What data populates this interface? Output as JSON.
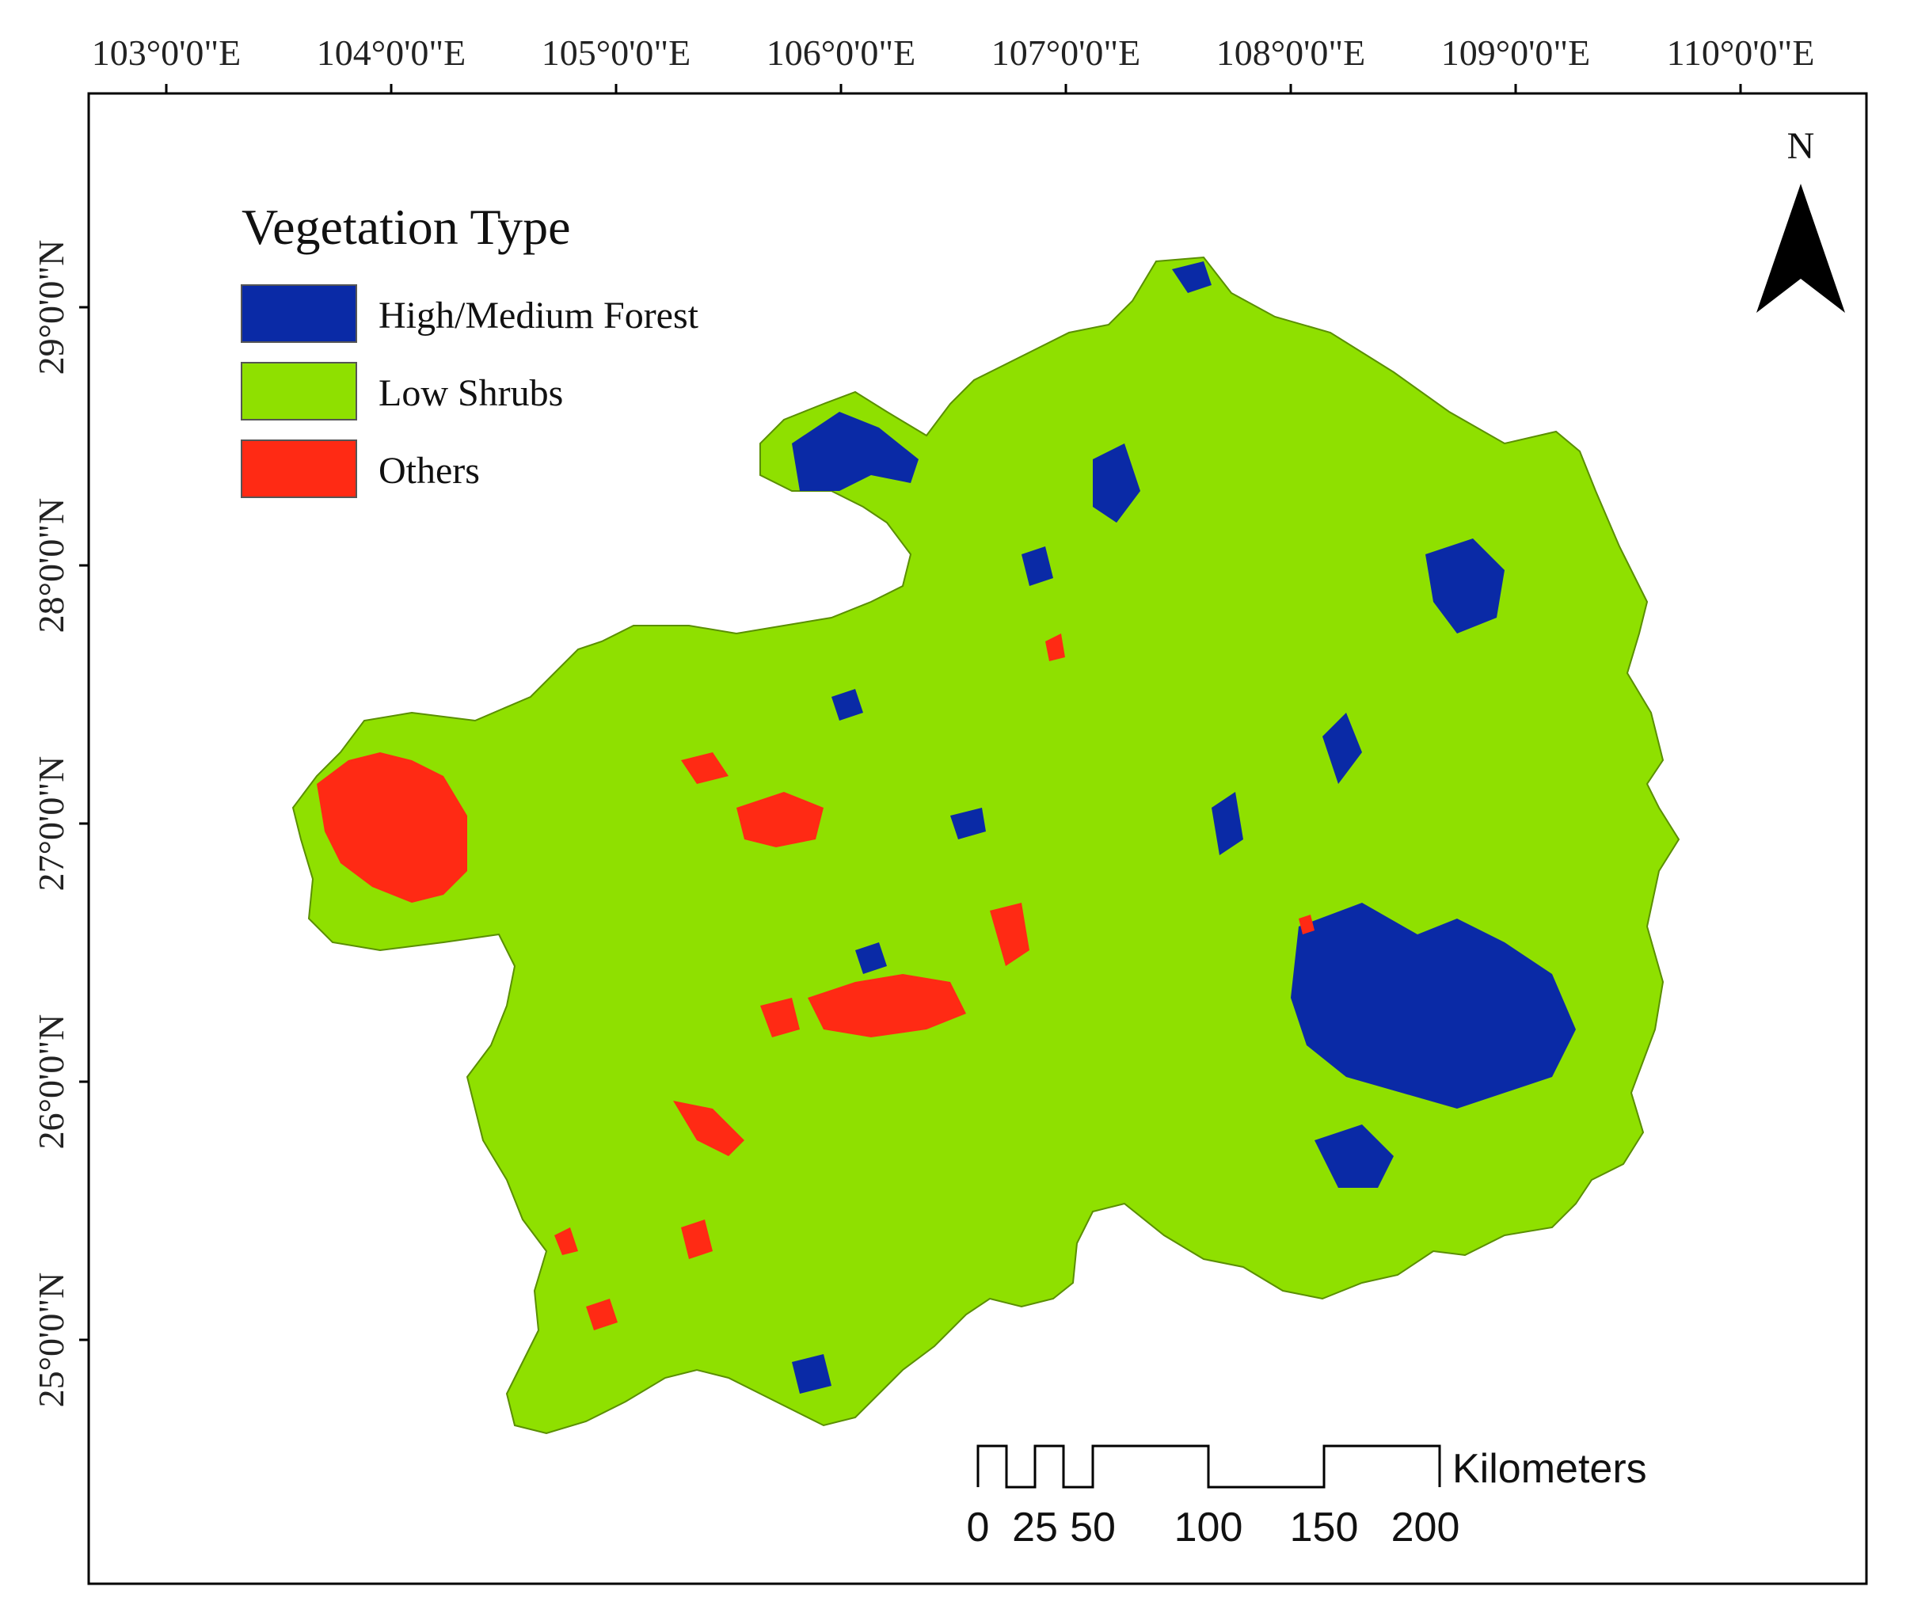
{
  "map": {
    "graticule": {
      "longitude_labels": [
        "103°0'0\"E",
        "104°0'0\"E",
        "105°0'0\"E",
        "106°0'0\"E",
        "107°0'0\"E",
        "108°0'0\"E",
        "109°0'0\"E",
        "110°0'0\"E"
      ],
      "latitude_labels": [
        "29°0'0\"N",
        "28°0'0\"N",
        "27°0'0\"N",
        "26°0'0\"N",
        "25°0'0\"N"
      ]
    },
    "legend": {
      "title": "Vegetation Type",
      "items": [
        {
          "label": "High/Medium Forest",
          "color": "#0a2aa6"
        },
        {
          "label": "Low Shrubs",
          "color": "#8fe000"
        },
        {
          "label": "Others",
          "color": "#ff2a14"
        }
      ]
    },
    "north_arrow": {
      "label": "N"
    },
    "scale_bar": {
      "unit": "Kilometers",
      "ticks": [
        "0",
        "25",
        "50",
        "100",
        "150",
        "200"
      ]
    },
    "colors": {
      "forest": "#0a2aa6",
      "shrubs": "#8fe000",
      "others": "#ff2a14",
      "frame": "#000000"
    }
  }
}
